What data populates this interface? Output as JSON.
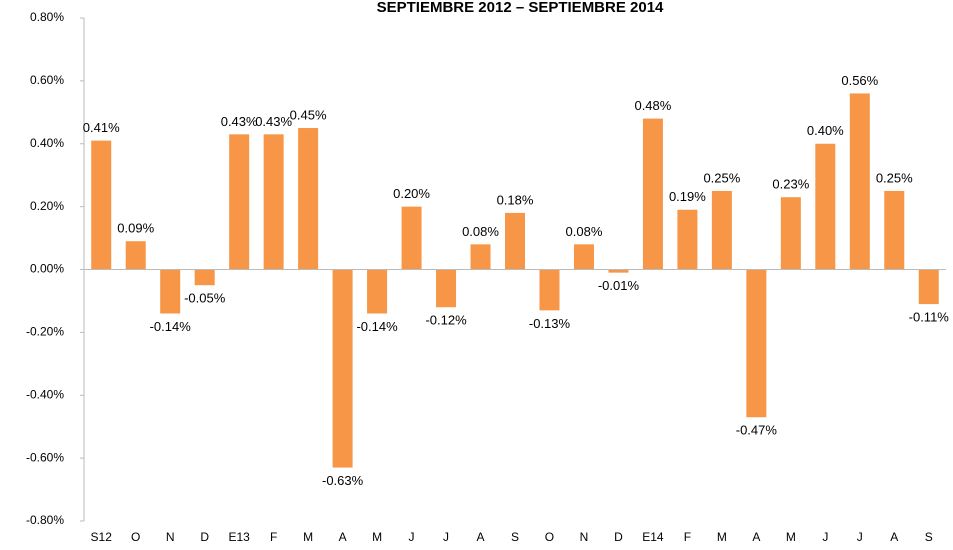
{
  "chart_data": {
    "type": "bar",
    "title": "SEPTIEMBRE 2012 – SEPTIEMBRE 2014",
    "categories": [
      "S12",
      "O",
      "N",
      "D",
      "E13",
      "F",
      "M",
      "A",
      "M",
      "J",
      "J",
      "A",
      "S",
      "O",
      "N",
      "D",
      "E14",
      "F",
      "M",
      "A",
      "M",
      "J",
      "J",
      "A",
      "S"
    ],
    "values": [
      0.41,
      0.09,
      -0.14,
      -0.05,
      0.43,
      0.43,
      0.45,
      -0.63,
      -0.14,
      0.2,
      -0.12,
      0.08,
      0.18,
      -0.13,
      0.08,
      -0.01,
      0.48,
      0.19,
      0.25,
      -0.47,
      0.23,
      0.4,
      0.56,
      0.25,
      -0.11
    ],
    "value_labels": [
      "0.41%",
      "0.09%",
      "-0.14%",
      "-0.05%",
      "0.43%",
      "0.43%",
      "0.45%",
      "-0.63%",
      "-0.14%",
      "0.20%",
      "-0.12%",
      "0.08%",
      "0.18%",
      "-0.13%",
      "0.08%",
      "-0.01%",
      "0.48%",
      "0.19%",
      "0.25%",
      "-0.47%",
      "0.23%",
      "0.40%",
      "0.56%",
      "0.25%",
      "-0.11%"
    ],
    "color": "#f79646",
    "ylim": [
      -0.8,
      0.8
    ],
    "yticks": [
      {
        "value": -0.8,
        "label": "-0.80%"
      },
      {
        "value": -0.6,
        "label": "-0.60%"
      },
      {
        "value": -0.4,
        "label": "-0.40%"
      },
      {
        "value": -0.2,
        "label": "-0.20%"
      },
      {
        "value": 0,
        "label": "0.00%"
      },
      {
        "value": 0.2,
        "label": "0.20%"
      },
      {
        "value": 0.4,
        "label": "0.40%"
      },
      {
        "value": 0.6,
        "label": "0.60%"
      },
      {
        "value": 0.8,
        "label": "0.80%"
      }
    ],
    "grid": false
  }
}
